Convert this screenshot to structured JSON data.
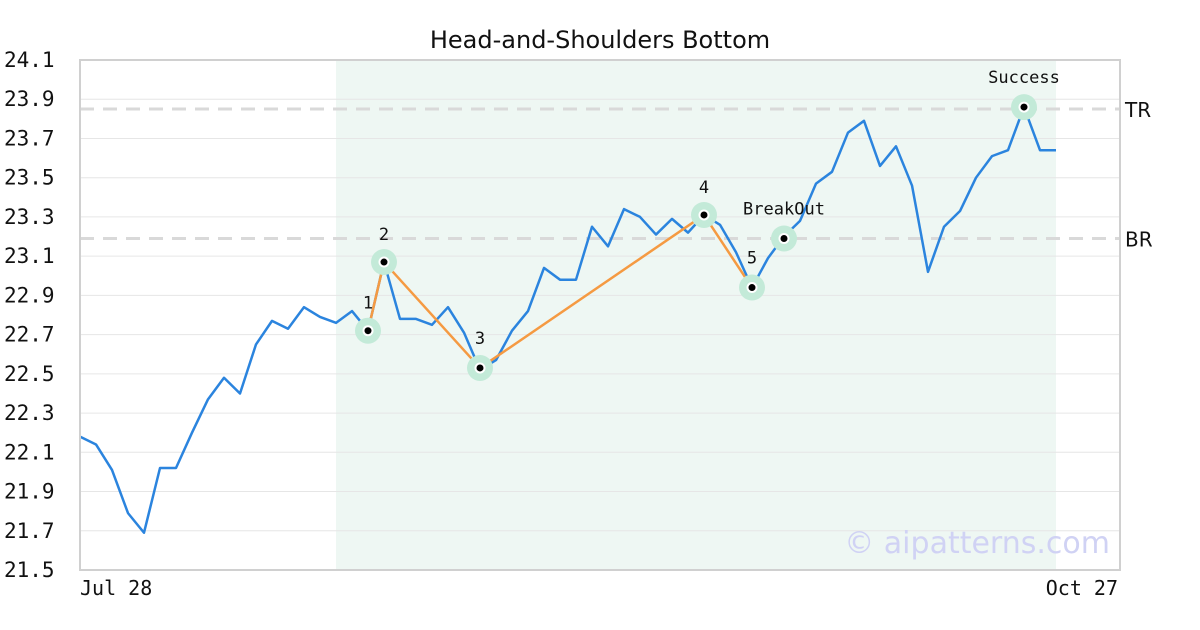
{
  "chart_data": {
    "type": "line",
    "title": "Head-and-Shoulders Bottom",
    "xlabel": "",
    "ylabel": "",
    "x_start_label": "Jul 28",
    "x_end_label": "Oct 27",
    "ylim": [
      21.5,
      24.1
    ],
    "yticks": [
      "21.5",
      "21.7",
      "21.9",
      "22.1",
      "22.3",
      "22.5",
      "22.7",
      "22.9",
      "23.1",
      "23.3",
      "23.5",
      "23.7",
      "23.9",
      "24.1"
    ],
    "grid": true,
    "series": [
      {
        "values": [
          22.18,
          22.14,
          22.01,
          21.79,
          21.69,
          22.02,
          22.02,
          22.2,
          22.37,
          22.48,
          22.4,
          22.65,
          22.77,
          22.73,
          22.84,
          22.79,
          22.76,
          22.82,
          22.72,
          23.07,
          22.78,
          22.78,
          22.75,
          22.84,
          22.71,
          22.52,
          22.57,
          22.72,
          22.82,
          23.04,
          22.98,
          22.98,
          23.25,
          23.15,
          23.34,
          23.3,
          23.21,
          23.29,
          23.22,
          23.31,
          23.26,
          23.12,
          22.94,
          23.09,
          23.2,
          23.28,
          23.47,
          23.53,
          23.73,
          23.79,
          23.56,
          23.66,
          23.46,
          23.02,
          23.25,
          23.33,
          23.5,
          23.61,
          23.64,
          23.86,
          23.64,
          23.64
        ]
      }
    ],
    "pattern_region": {
      "start_index": 16,
      "end_index": 61
    },
    "levels": [
      {
        "label": "TR",
        "value": 23.85
      },
      {
        "label": "BR",
        "value": 23.19
      }
    ],
    "pattern_points": [
      {
        "label": "1",
        "index": 18,
        "value": 22.72
      },
      {
        "label": "2",
        "index": 19,
        "value": 23.07
      },
      {
        "label": "3",
        "index": 25,
        "value": 22.53
      },
      {
        "label": "4",
        "index": 39,
        "value": 23.31
      },
      {
        "label": "5",
        "index": 42,
        "value": 22.94
      }
    ],
    "events": [
      {
        "label": "BreakOut",
        "index": 44,
        "value": 23.19
      },
      {
        "label": "Success",
        "index": 59,
        "value": 23.86
      }
    ],
    "watermark": "© aipatterns.com",
    "colors": {
      "price_line": "#2b84de",
      "pattern_line": "#f59a42",
      "region_fill": "#eef7f3",
      "marker_ring": "#c3ead8",
      "level_line": "#d9d9d9",
      "grid": "#e6e6e6",
      "axis": "#d0d0d0"
    }
  }
}
